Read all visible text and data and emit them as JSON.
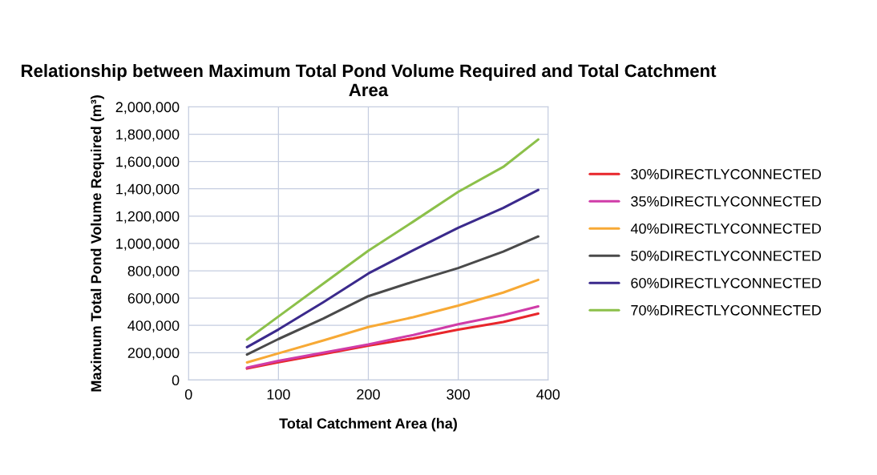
{
  "chart_data": {
    "type": "line",
    "title": "Relationship between Maximum Total Pond Volume Required and Total Catchment Area",
    "xlabel": "Total Catchment Area (ha)",
    "ylabel": "Maximum Total Pond Volume Required (m³)",
    "x": [
      65,
      100,
      150,
      200,
      250,
      300,
      350,
      389
    ],
    "series": [
      {
        "name": "30%DIRECTLYCONNECTED",
        "color": "#e8262b",
        "values": [
          84000,
          130000,
          190000,
          251000,
          305000,
          369000,
          425000,
          486000
        ]
      },
      {
        "name": "35%DIRECTLYCONNECTED",
        "color": "#d03ca8",
        "values": [
          90000,
          140000,
          200000,
          261000,
          330000,
          408000,
          475000,
          539000
        ]
      },
      {
        "name": "40%DIRECTLYCONNECTED",
        "color": "#f7a935",
        "values": [
          129000,
          195000,
          290000,
          388000,
          460000,
          545000,
          640000,
          733000
        ]
      },
      {
        "name": "50%DIRECTLYCONNECTED",
        "color": "#4a4a4a",
        "values": [
          186000,
          300000,
          450000,
          614000,
          720000,
          820000,
          940000,
          1051000
        ]
      },
      {
        "name": "60%DIRECTLYCONNECTED",
        "color": "#3b2a8c",
        "values": [
          241000,
          370000,
          570000,
          780000,
          950000,
          1114000,
          1260000,
          1392000
        ]
      },
      {
        "name": "70%DIRECTLYCONNECTED",
        "color": "#8cc04a",
        "values": [
          296000,
          465000,
          706000,
          947000,
          1160000,
          1378000,
          1560000,
          1761000
        ]
      }
    ],
    "xlim": [
      0,
      400
    ],
    "xticks": [
      0,
      100,
      200,
      300,
      400
    ],
    "ylim": [
      0,
      2000000
    ],
    "yticks": [
      {
        "value": 0,
        "label": "0"
      },
      {
        "value": 200000,
        "label": "200,000"
      },
      {
        "value": 400000,
        "label": "400,000"
      },
      {
        "value": 600000,
        "label": "600,000"
      },
      {
        "value": 800000,
        "label": "800,000"
      },
      {
        "value": 1000000,
        "label": "1,000,000"
      },
      {
        "value": 1200000,
        "label": "1,200,000"
      },
      {
        "value": 1400000,
        "label": "1,400,000"
      },
      {
        "value": 1600000,
        "label": "1,600,000"
      },
      {
        "value": 1800000,
        "label": "1,800,000"
      },
      {
        "value": 2000000,
        "label": "2,000,000"
      }
    ],
    "grid": true,
    "legend": "right",
    "marker": "none",
    "line_style": "solid"
  }
}
